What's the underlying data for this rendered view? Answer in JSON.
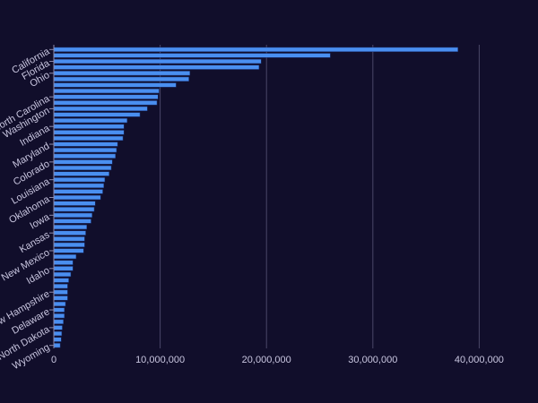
{
  "colors": {
    "background": "#110e2b",
    "bar": "#4a8ff0",
    "bar_outline": "#1a2f6e",
    "grid": "#4a4768",
    "text": "#c9c6e0"
  },
  "chart_data": {
    "type": "bar",
    "orientation": "horizontal",
    "title": "",
    "xlabel": "",
    "ylabel": "",
    "xlim": [
      0,
      43000000
    ],
    "xticks": [
      0,
      10000000,
      20000000,
      30000000,
      40000000
    ],
    "xtick_labels": [
      "0",
      "10,000,000",
      "20,000,000",
      "30,000,000",
      "40,000,000"
    ],
    "grid": "vertical",
    "legend": "none",
    "labeled_categories": [
      "California",
      "Florida",
      "Ohio",
      "North Carolina",
      "Washington",
      "Indiana",
      "Maryland",
      "Colorado",
      "Louisiana",
      "Oklahoma",
      "Iowa",
      "Kansas",
      "New Mexico",
      "Idaho",
      "New Hampshire",
      "Delaware",
      "North Dakota",
      "Wyoming"
    ],
    "categories": [
      "California",
      "",
      "Florida",
      "",
      "Ohio",
      "",
      "",
      "",
      "North Carolina",
      "",
      "Washington",
      "",
      "",
      "Indiana",
      "",
      "",
      "Maryland",
      "",
      "",
      "Colorado",
      "",
      "",
      "Louisiana",
      "",
      "",
      "Oklahoma",
      "",
      "",
      "Iowa",
      "",
      "",
      "Kansas",
      "",
      "",
      "New Mexico",
      "",
      "",
      "Idaho",
      "",
      "",
      "",
      "New Hampshire",
      "",
      "",
      "Delaware",
      "",
      "",
      "North Dakota",
      "",
      "",
      "Wyoming"
    ],
    "values": [
      38000000,
      26000000,
      19500000,
      19300000,
      12800000,
      12700000,
      11500000,
      9900000,
      9800000,
      9700000,
      8800000,
      8100000,
      6900000,
      6600000,
      6600000,
      6500000,
      6000000,
      5900000,
      5800000,
      5500000,
      5400000,
      5200000,
      4800000,
      4700000,
      4600000,
      4400000,
      3900000,
      3800000,
      3600000,
      3500000,
      3100000,
      3000000,
      2900000,
      2900000,
      2800000,
      2100000,
      1800000,
      1800000,
      1600000,
      1400000,
      1300000,
      1300000,
      1300000,
      1100000,
      1000000,
      1000000,
      900000,
      800000,
      750000,
      700000,
      600000
    ]
  }
}
